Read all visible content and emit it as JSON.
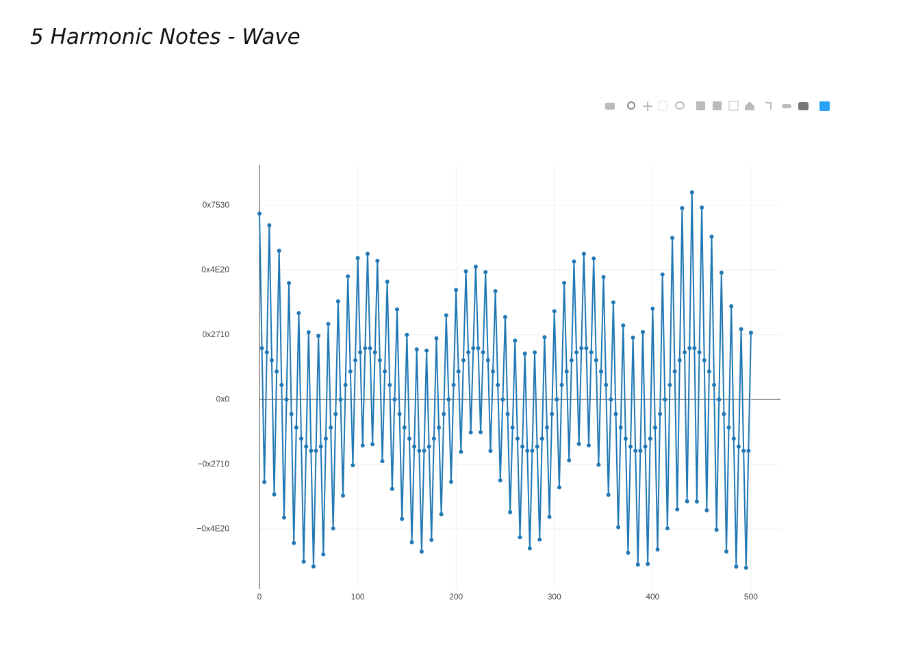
{
  "chart_data": {
    "type": "line",
    "title": "5 Harmonic Notes - Wave",
    "color": "#1f77b4",
    "x": [
      0,
      2.5,
      5,
      7.5,
      10,
      12.5,
      15,
      17.5,
      20,
      22.5,
      25,
      27.5,
      30,
      32.5,
      35,
      37.5,
      40,
      42.5,
      45,
      47.5,
      50,
      52.5,
      55,
      57.5,
      60,
      62.5,
      65,
      67.5,
      70,
      72.5,
      75,
      77.5,
      80,
      82.5,
      85,
      87.5,
      90,
      92.5,
      95,
      97.5,
      100,
      102.5,
      105,
      107.5,
      110,
      112.5,
      115,
      117.5,
      120,
      122.5,
      125,
      127.5,
      130,
      132.5,
      135,
      137.5,
      140,
      142.5,
      145,
      147.5,
      150,
      152.5,
      155,
      157.5,
      160,
      162.5,
      165,
      167.5,
      170,
      172.5,
      175,
      177.5,
      180,
      182.5,
      185,
      187.5,
      190,
      192.5,
      195,
      197.5,
      200,
      202.5,
      205,
      207.5,
      210,
      212.5,
      215,
      217.5,
      220,
      222.5,
      225,
      227.5,
      230,
      232.5,
      235,
      237.5,
      240,
      242.5,
      245,
      247.5,
      250,
      252.5,
      255,
      257.5,
      260,
      262.5,
      265,
      267.5,
      270,
      272.5,
      275,
      277.5,
      280,
      282.5,
      285,
      287.5,
      290,
      292.5,
      295,
      297.5,
      300,
      302.5,
      305,
      307.5,
      310,
      312.5,
      315,
      317.5,
      320,
      322.5,
      325,
      327.5,
      330,
      332.5,
      335,
      337.5,
      340,
      342.5,
      345,
      347.5,
      350,
      352.5,
      355,
      357.5,
      360,
      362.5,
      365,
      367.5,
      370,
      372.5,
      375,
      377.5,
      380,
      382.5,
      385,
      387.5,
      390,
      392.5,
      395,
      397.5,
      400,
      402.5,
      405,
      407.5,
      410,
      412.5,
      415,
      417.5,
      420,
      422.5,
      425,
      427.5,
      430,
      432.5,
      435,
      437.5,
      440,
      442.5,
      445,
      447.5,
      450,
      452.5,
      455,
      457.5,
      460,
      462.5,
      465,
      467.5,
      470,
      472.5,
      475,
      477.5,
      480,
      482.5,
      485,
      487.5,
      490,
      492.5,
      495,
      497.5,
      500
    ],
    "values": [
      28700,
      7920,
      -12760,
      7280,
      26900,
      6050,
      -14670,
      4330,
      22970,
      2250,
      -18240,
      0,
      17980,
      -2250,
      -22170,
      -4330,
      13350,
      -6050,
      -25060,
      -7280,
      10380,
      -7920,
      -25800,
      -7920,
      9820,
      -7280,
      -23930,
      -6050,
      11660,
      -4330,
      -19920,
      -2250,
      15160,
      0,
      -14860,
      2250,
      19020,
      4330,
      -10160,
      6050,
      21830,
      7280,
      -7120,
      7920,
      22500,
      7920,
      -6910,
      7280,
      21410,
      6050,
      -9530,
      4330,
      18180,
      2250,
      -13810,
      0,
      13910,
      -2250,
      -18460,
      -4330,
      9990,
      -6050,
      -22050,
      -7280,
      7730,
      -7920,
      -23500,
      -7920,
      7550,
      -7280,
      -21680,
      -6050,
      9440,
      -4330,
      -17730,
      -2250,
      13000,
      0,
      -12720,
      2250,
      16910,
      4330,
      -8080,
      6050,
      19780,
      7280,
      -5090,
      7920,
      20500,
      7920,
      -5050,
      7280,
      19680,
      6050,
      -7940,
      4330,
      16730,
      2250,
      -12500,
      0,
      12720,
      -2250,
      -17410,
      -4330,
      9080,
      -6050,
      -21280,
      -7280,
      7090,
      -7920,
      -23000,
      -7920,
      7270,
      -7280,
      -21640,
      -6050,
      9620,
      -4330,
      -18140,
      -2250,
      13630,
      0,
      -13590,
      2250,
      18000,
      4330,
      -9400,
      6050,
      21320,
      7280,
      -6870,
      7920,
      22500,
      7920,
      -7090,
      7280,
      21780,
      6050,
      -10080,
      4330,
      18910,
      2250,
      -14720,
      0,
      15000,
      -2250,
      -19730,
      -4330,
      11440,
      -6050,
      -23680,
      -7280,
      9550,
      -7920,
      -25500,
      -7920,
      10410,
      -7280,
      -25410,
      -6050,
      14030,
      -4330,
      -23180,
      -2250,
      19310,
      0,
      -19910,
      2250,
      24960,
      4330,
      -16990,
      6050,
      29550,
      7280,
      -15730,
      7920,
      32000,
      7920,
      -15770,
      7280,
      29640,
      6050,
      -17120,
      4330,
      25140,
      2250,
      -20130,
      0,
      19590,
      -2250,
      -23500,
      -4330,
      14400,
      -6050,
      -25820,
      -7280,
      10870,
      -7920,
      -26000,
      -7920,
      10320
    ],
    "xlim": [
      0,
      530
    ],
    "xticks": [
      0,
      100,
      200,
      300,
      400,
      500
    ],
    "ylim": [
      -29300,
      36200
    ],
    "yticks": [
      {
        "value": 30000,
        "label": "0x7530"
      },
      {
        "value": 20000,
        "label": "0x4E20"
      },
      {
        "value": 10000,
        "label": "0x2710"
      },
      {
        "value": 0,
        "label": "0x0"
      },
      {
        "value": -10000,
        "label": "−0x2710"
      },
      {
        "value": -20000,
        "label": "−0x4E20"
      }
    ],
    "grid": true,
    "zeroline": true,
    "markers": true
  }
}
